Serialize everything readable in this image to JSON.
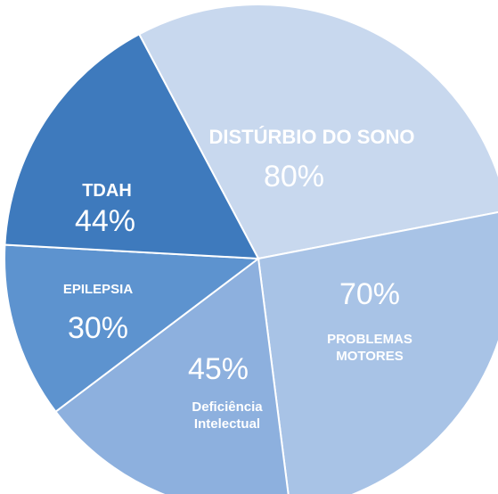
{
  "chart_data": {
    "type": "pie",
    "categories": [
      "DISTÚRBIO DO SONO",
      "PROBLEMAS MOTORES",
      "Deficiência Intelectual",
      "EPILEPSIA",
      "TDAH"
    ],
    "values": [
      80,
      70,
      45,
      30,
      44
    ],
    "value_labels": [
      "80%",
      "70%",
      "45%",
      "30%",
      "44%"
    ],
    "colors": [
      "#c8d8ee",
      "#a8c3e6",
      "#8db0de",
      "#5d93cf",
      "#3e7abd"
    ]
  }
}
